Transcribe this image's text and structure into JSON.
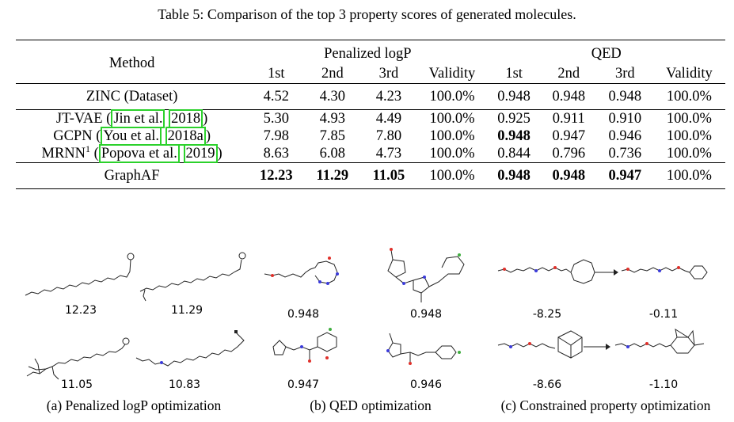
{
  "caption": "Table 5: Comparison of the top 3 property scores of generated molecules.",
  "table": {
    "method_header": "Method",
    "group_headers": [
      "Penalized logP",
      "QED"
    ],
    "sub_headers": [
      "1st",
      "2nd",
      "3rd",
      "Validity",
      "1st",
      "2nd",
      "3rd",
      "Validity"
    ],
    "rows": [
      {
        "method": "ZINC (Dataset)",
        "values": [
          "4.52",
          "4.30",
          "4.23",
          "100.0%",
          "0.948",
          "0.948",
          "0.948",
          "100.0%"
        ]
      },
      {
        "method_prefix": "JT-VAE (",
        "cite_author": "Jin et al.",
        "cite_year": "2018",
        "method_suffix": ")",
        "values": [
          "5.30",
          "4.93",
          "4.49",
          "100.0%",
          "0.925",
          "0.911",
          "0.910",
          "100.0%"
        ]
      },
      {
        "method_prefix": "GCPN (",
        "cite_author": "You et al.",
        "cite_year": "2018a",
        "method_suffix": ")",
        "values": [
          "7.98",
          "7.85",
          "7.80",
          "100.0%",
          "0.948",
          "0.947",
          "0.946",
          "100.0%"
        ]
      },
      {
        "method_prefix": "MRNN",
        "sup": "1",
        "method_mid": " (",
        "cite_author": "Popova et al.",
        "cite_year": "2019",
        "method_suffix": ")",
        "values": [
          "8.63",
          "6.08",
          "4.73",
          "100.0%",
          "0.844",
          "0.796",
          "0.736",
          "100.0%"
        ]
      },
      {
        "method": "GraphAF",
        "values": [
          "12.23",
          "11.29",
          "11.05",
          "100.0%",
          "0.948",
          "0.948",
          "0.947",
          "100.0%"
        ]
      }
    ]
  },
  "figure": {
    "logp_scores": [
      "12.23",
      "11.29",
      "11.05",
      "10.83"
    ],
    "qed_scores": [
      "0.948",
      "0.948",
      "0.947",
      "0.946"
    ],
    "constrained_scores": [
      "-8.25",
      "-0.11",
      "-8.66",
      "-1.10"
    ],
    "subcaptions": [
      "(a) Penalized logP optimization",
      "(b) QED optimization",
      "(c) Constrained property optimization"
    ],
    "watermark": "https://blog.csdn.net/...0"
  },
  "colors": {
    "citation_box": "#2bd12b",
    "atom_red": "#e0302a",
    "atom_blue": "#3b3bdb",
    "atom_green": "#3fae3f"
  }
}
